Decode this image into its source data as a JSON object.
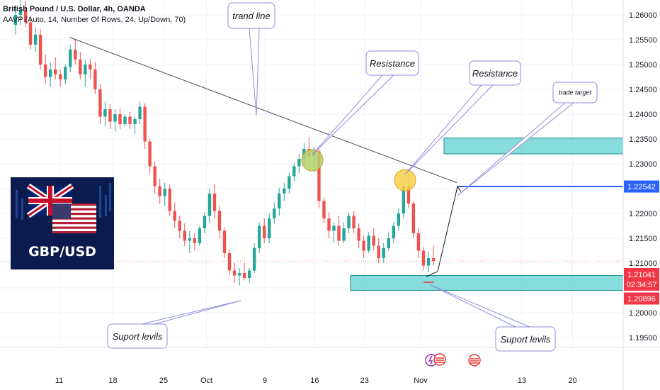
{
  "header": {
    "title": "British Pound / U.S. Dollar, 4h, OANDA",
    "indicator": "AAVP (Auto, 14, Number Of Rows, 24, Up/Down, 70)"
  },
  "logo": {
    "text": "GBP/USD"
  },
  "annotations": {
    "trend_line": "trand line",
    "resistance_1": "Resistance",
    "resistance_2": "Resistance",
    "trade_target": "trade target",
    "support_left": "Suport levils",
    "support_right": "Suport levils"
  },
  "price_tags": {
    "target": "1.22542",
    "current": "1.21041",
    "countdown": "02:34:57",
    "low": "1.20896"
  },
  "colors": {
    "up": "#26a69a",
    "down": "#ef5350",
    "zone_fill": "#5fd0d0",
    "zone_stroke": "#1e8f8f",
    "target_line": "#2962ff",
    "current_tag": "#f23645",
    "resist_1": "#b5d36b",
    "resist_2": "#f7d24a",
    "callout_border": "#8c8ce0"
  },
  "chart_data": {
    "type": "candlestick",
    "symbol": "GBP/USD",
    "interval": "4h",
    "y_axis": {
      "ticks": [
        "1.26000",
        "1.25500",
        "1.25000",
        "1.24500",
        "1.24000",
        "1.23500",
        "1.23000",
        "1.22500",
        "1.22000",
        "1.21500",
        "1.21000",
        "1.20500",
        "1.20000",
        "1.19500"
      ],
      "ylim": [
        1.193,
        1.263
      ]
    },
    "x_axis": {
      "ticks": [
        "11",
        "18",
        "25",
        "Oct",
        "9",
        "16",
        "23",
        "Nov",
        "13",
        "20"
      ],
      "xlim": [
        0,
        120
      ]
    },
    "zones": [
      {
        "name": "resistance",
        "x_start": 57,
        "y_low": 1.232,
        "y_high": 1.2352
      },
      {
        "name": "support",
        "x_start": 45,
        "y_low": 1.2045,
        "y_high": 1.2075
      }
    ],
    "trend_line": {
      "x1": 13,
      "y1": 1.2555,
      "x2": 87,
      "y2": 1.2262
    },
    "trade_target_level": 1.22542,
    "projection": [
      {
        "x": 83,
        "y": 1.2083
      },
      {
        "x": 88,
        "y": 1.2254
      }
    ],
    "candles_ohlc": [
      [
        1.258,
        1.262,
        1.256,
        1.26
      ],
      [
        1.26,
        1.2632,
        1.258,
        1.261
      ],
      [
        1.261,
        1.2628,
        1.2575,
        1.2585
      ],
      [
        1.2585,
        1.2598,
        1.253,
        1.254
      ],
      [
        1.254,
        1.2575,
        1.2525,
        1.256
      ],
      [
        1.256,
        1.2572,
        1.249,
        1.25
      ],
      [
        1.25,
        1.252,
        1.246,
        1.2475
      ],
      [
        1.2475,
        1.2505,
        1.2455,
        1.249
      ],
      [
        1.249,
        1.2515,
        1.247,
        1.248
      ],
      [
        1.248,
        1.249,
        1.2455,
        1.247
      ],
      [
        1.247,
        1.25,
        1.246,
        1.2495
      ],
      [
        1.2495,
        1.254,
        1.2485,
        1.253
      ],
      [
        1.253,
        1.2552,
        1.25,
        1.251
      ],
      [
        1.251,
        1.2525,
        1.247,
        1.248
      ],
      [
        1.248,
        1.251,
        1.2455,
        1.25
      ],
      [
        1.25,
        1.2512,
        1.247,
        1.249
      ],
      [
        1.249,
        1.2505,
        1.244,
        1.245
      ],
      [
        1.245,
        1.246,
        1.238,
        1.2395
      ],
      [
        1.2395,
        1.2425,
        1.2375,
        1.241
      ],
      [
        1.241,
        1.242,
        1.237,
        1.2385
      ],
      [
        1.2385,
        1.241,
        1.2365,
        1.24
      ],
      [
        1.24,
        1.2412,
        1.237,
        1.238
      ],
      [
        1.238,
        1.24,
        1.2375,
        1.2395
      ],
      [
        1.2395,
        1.2405,
        1.237,
        1.238
      ],
      [
        1.238,
        1.2395,
        1.236,
        1.239
      ],
      [
        1.239,
        1.2425,
        1.238,
        1.2415
      ],
      [
        1.2415,
        1.2422,
        1.233,
        1.2345
      ],
      [
        1.2345,
        1.235,
        1.228,
        1.2295
      ],
      [
        1.2295,
        1.2305,
        1.224,
        1.2255
      ],
      [
        1.2255,
        1.227,
        1.222,
        1.2235
      ],
      [
        1.2235,
        1.2262,
        1.2215,
        1.225
      ],
      [
        1.225,
        1.2258,
        1.2195,
        1.2205
      ],
      [
        1.2205,
        1.2222,
        1.217,
        1.2185
      ],
      [
        1.2185,
        1.2195,
        1.215,
        1.2165
      ],
      [
        1.2165,
        1.218,
        1.2135,
        1.2145
      ],
      [
        1.2145,
        1.2165,
        1.212,
        1.215
      ],
      [
        1.215,
        1.216,
        1.2125,
        1.214
      ],
      [
        1.214,
        1.2175,
        1.2135,
        1.217
      ],
      [
        1.217,
        1.2202,
        1.216,
        1.2195
      ],
      [
        1.2195,
        1.225,
        1.218,
        1.224
      ],
      [
        1.224,
        1.226,
        1.219,
        1.2205
      ],
      [
        1.2205,
        1.2215,
        1.215,
        1.2165
      ],
      [
        1.2165,
        1.2172,
        1.211,
        1.212
      ],
      [
        1.212,
        1.2128,
        1.2075,
        1.2085
      ],
      [
        1.2085,
        1.21,
        1.206,
        1.2075
      ],
      [
        1.2075,
        1.209,
        1.2055,
        1.208
      ],
      [
        1.208,
        1.21,
        1.2065,
        1.207
      ],
      [
        1.207,
        1.209,
        1.206,
        1.2085
      ],
      [
        1.2085,
        1.214,
        1.208,
        1.213
      ],
      [
        1.213,
        1.2182,
        1.212,
        1.2175
      ],
      [
        1.2175,
        1.219,
        1.214,
        1.215
      ],
      [
        1.215,
        1.22,
        1.214,
        1.219
      ],
      [
        1.219,
        1.2222,
        1.218,
        1.221
      ],
      [
        1.221,
        1.2252,
        1.2195,
        1.224
      ],
      [
        1.224,
        1.2262,
        1.2225,
        1.225
      ],
      [
        1.225,
        1.2282,
        1.224,
        1.2275
      ],
      [
        1.2275,
        1.2302,
        1.2265,
        1.2295
      ],
      [
        1.2295,
        1.232,
        1.228,
        1.231
      ],
      [
        1.231,
        1.2342,
        1.23,
        1.233
      ],
      [
        1.233,
        1.2352,
        1.23,
        1.2315
      ],
      [
        1.2315,
        1.2335,
        1.2285,
        1.2325
      ],
      [
        1.2325,
        1.233,
        1.221,
        1.2225
      ],
      [
        1.2225,
        1.2232,
        1.218,
        1.219
      ],
      [
        1.219,
        1.2202,
        1.215,
        1.2165
      ],
      [
        1.2165,
        1.2182,
        1.214,
        1.2175
      ],
      [
        1.2175,
        1.2195,
        1.2135,
        1.2145
      ],
      [
        1.2145,
        1.2182,
        1.214,
        1.217
      ],
      [
        1.217,
        1.2202,
        1.216,
        1.2195
      ],
      [
        1.2195,
        1.2205,
        1.216,
        1.217
      ],
      [
        1.217,
        1.218,
        1.213,
        1.2145
      ],
      [
        1.2145,
        1.2155,
        1.211,
        1.2125
      ],
      [
        1.2125,
        1.2162,
        1.212,
        1.2155
      ],
      [
        1.2155,
        1.217,
        1.2125,
        1.2135
      ],
      [
        1.2135,
        1.215,
        1.21,
        1.211
      ],
      [
        1.211,
        1.214,
        1.21,
        1.213
      ],
      [
        1.213,
        1.2162,
        1.2125,
        1.215
      ],
      [
        1.215,
        1.2182,
        1.214,
        1.2175
      ],
      [
        1.2175,
        1.221,
        1.2165,
        1.22
      ],
      [
        1.22,
        1.2262,
        1.219,
        1.2255
      ],
      [
        1.2255,
        1.228,
        1.221,
        1.222
      ],
      [
        1.222,
        1.2225,
        1.215,
        1.216
      ],
      [
        1.216,
        1.217,
        1.211,
        1.2125
      ],
      [
        1.2125,
        1.2132,
        1.2085,
        1.2095
      ],
      [
        1.2095,
        1.2122,
        1.2082,
        1.211
      ],
      [
        1.211,
        1.2135,
        1.2095,
        1.2104
      ]
    ]
  }
}
